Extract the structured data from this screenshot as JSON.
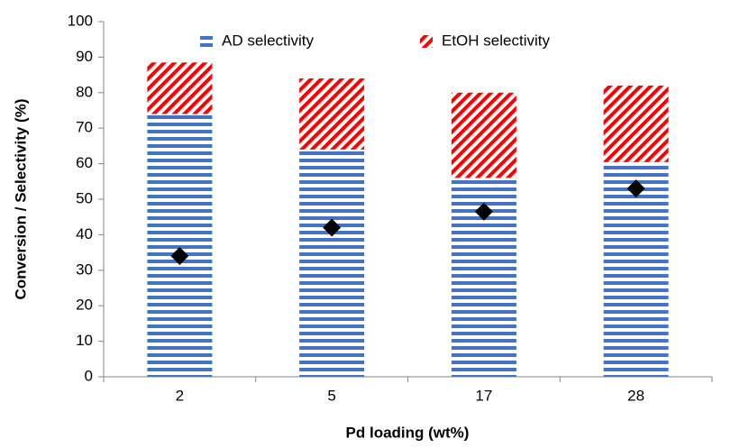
{
  "chart_data": {
    "type": "stacked-bar",
    "x_label": "Pd loading (wt%)",
    "y_label": "Conversion / Selectivity (%)",
    "categories": [
      "2",
      "5",
      "17",
      "28"
    ],
    "series": [
      {
        "name": "AD selectivity",
        "color": "#4472c4",
        "pattern": "horizontal",
        "values": [
          74,
          64,
          56,
          60.5
        ]
      },
      {
        "name": "EtOH selectivity",
        "color": "#ff0000",
        "pattern": "diagonal",
        "values": [
          14.5,
          20,
          24,
          21.5
        ]
      }
    ],
    "points": {
      "marker": "diamond",
      "color": "#000000",
      "values": [
        34,
        42,
        46.5,
        53
      ]
    },
    "ylim": [
      0,
      100
    ],
    "yticks": [
      0,
      10,
      20,
      30,
      40,
      50,
      60,
      70,
      80,
      90,
      100
    ],
    "legend": "top"
  }
}
